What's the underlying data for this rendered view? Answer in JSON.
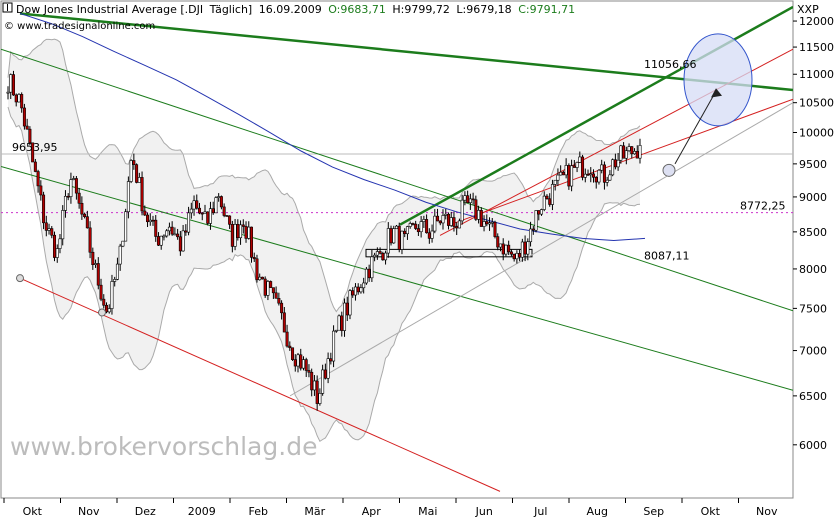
{
  "header": {
    "instrument": "Dow Jones Industrial Average [.DJI",
    "interval": "Täglich]",
    "date": "16.09.2009",
    "open": "O:9683,71",
    "high": "H:9799,72",
    "low": "L:9679,18",
    "close": "C:9791,71",
    "copyright": "© www.tradesignalonline.com",
    "axis_symbol": "XXP"
  },
  "watermark": "www.brokervorschlag.de",
  "colors": {
    "up": "#ffffff",
    "down": "#b00000",
    "candle_edge": "#000000",
    "green_line": "#1c7c1c",
    "red_line": "#d42020",
    "blue_ma": "#2434b0",
    "bollinger": "#aaaaaa",
    "band_fill": "#f1f1f1",
    "label_green": "#1c7c1c",
    "label_magenta": "#cc33cc",
    "ellipse_fill": "#d6dcf6",
    "ellipse_edge": "#3355cc"
  },
  "chart_data": {
    "type": "candlestick",
    "ylim": [
      5500,
      12400
    ],
    "yticks": [
      6000,
      6500,
      7000,
      7500,
      8000,
      8500,
      9000,
      9500,
      10000,
      10500,
      11000,
      11500,
      12000
    ],
    "xmonths": [
      "Okt",
      "Nov",
      "Dez",
      "2009",
      "Feb",
      "Mär",
      "Apr",
      "Mai",
      "Jun",
      "Jul",
      "Aug",
      "Sep",
      "Okt",
      "Nov"
    ],
    "annotations": [
      {
        "text": "9653,95",
        "y": 9653.95,
        "color": "#aaaaaa"
      },
      {
        "text": "11056,66",
        "y": 11056.66,
        "color": "#1c7c1c"
      },
      {
        "text": "8772,25",
        "y": 8772.25,
        "color": "#cc33cc"
      },
      {
        "text": "8087,11",
        "y": 8087.11,
        "color": "#1c7c1c"
      }
    ],
    "anchors": [
      {
        "name": "start",
        "y": 10900
      },
      {
        "name": "okt-low",
        "y": 7880
      },
      {
        "name": "nov-low",
        "y": 7450
      },
      {
        "name": "nov-high",
        "y": 9650
      },
      {
        "name": "jan-high",
        "y": 9060
      },
      {
        "name": "mar-low",
        "y": 6470
      },
      {
        "name": "mai-high",
        "y": 8590
      },
      {
        "name": "jun-high",
        "y": 8880
      },
      {
        "name": "jul-low",
        "y": 8100
      },
      {
        "name": "sep-last",
        "y": 9791.71
      }
    ],
    "trendlines": [
      {
        "name": "green-upper-channel",
        "color": "#1c7c1c",
        "y_start": 11460,
        "y_end": 7470
      },
      {
        "name": "green-lower-channel",
        "color": "#1c7c1c",
        "y_start": 9460,
        "y_end": 6560
      },
      {
        "name": "green-long-resistance",
        "color": "#1c7c1c",
        "y_start": 12150,
        "y_end": 10720
      },
      {
        "name": "green-uptrend",
        "color": "#1c7c1c",
        "y_start": 8600,
        "y_end": 12280
      },
      {
        "name": "red-lower-channel",
        "color": "#d42020",
        "y_start": 7880,
        "y_end": 5560
      },
      {
        "name": "red-upper-1",
        "color": "#d42020",
        "y_start": 8450,
        "y_end": 11460
      },
      {
        "name": "red-upper-2",
        "color": "#d42020",
        "y_start": 8600,
        "y_end": 10560
      },
      {
        "name": "grey-support",
        "color": "#aaaaaa",
        "y_start": 6500,
        "y_end": 10500
      }
    ],
    "moving_average": [
      {
        "y": 12150
      },
      {
        "y": 11950
      },
      {
        "y": 11700
      },
      {
        "y": 11420
      },
      {
        "y": 11160
      },
      {
        "y": 10900
      },
      {
        "y": 10600
      },
      {
        "y": 10300
      },
      {
        "y": 10000
      },
      {
        "y": 9700
      },
      {
        "y": 9450
      },
      {
        "y": 9260
      },
      {
        "y": 9100
      },
      {
        "y": 8920
      },
      {
        "y": 8780
      },
      {
        "y": 8660
      },
      {
        "y": 8540
      },
      {
        "y": 8470
      },
      {
        "y": 8410
      },
      {
        "y": 8380
      },
      {
        "y": 8410
      }
    ],
    "keyframes": [
      10900,
      10500,
      9500,
      8600,
      8200,
      9300,
      8700,
      8000,
      7450,
      8100,
      9650,
      8800,
      8400,
      8600,
      8300,
      8900,
      8600,
      9060,
      8400,
      8700,
      8000,
      7700,
      7400,
      7000,
      6800,
      6470,
      7000,
      7400,
      7700,
      8000,
      8200,
      8500,
      8350,
      8600,
      8500,
      8700,
      8600,
      8880,
      8750,
      8500,
      8300,
      8100,
      8450,
      8900,
      9100,
      9300,
      9450,
      9500,
      9300,
      9550,
      9650,
      9791.71
    ]
  }
}
